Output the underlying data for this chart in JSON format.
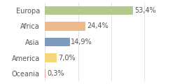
{
  "categories": [
    "Europa",
    "Africa",
    "Asia",
    "America",
    "Oceania"
  ],
  "values": [
    53.4,
    24.4,
    14.9,
    7.0,
    0.3
  ],
  "bar_colors": [
    "#b5c98e",
    "#f0b98a",
    "#7b9bbf",
    "#f5d57a",
    "#e8a0a0"
  ],
  "labels": [
    "53,4%",
    "24,4%",
    "14,9%",
    "7,0%",
    "0,3%"
  ],
  "xlim": [
    0,
    70
  ],
  "background_color": "#ffffff",
  "label_fontsize": 7.0,
  "tick_fontsize": 7.0,
  "bar_height": 0.55,
  "grid_color": "#dddddd",
  "text_color": "#555555"
}
